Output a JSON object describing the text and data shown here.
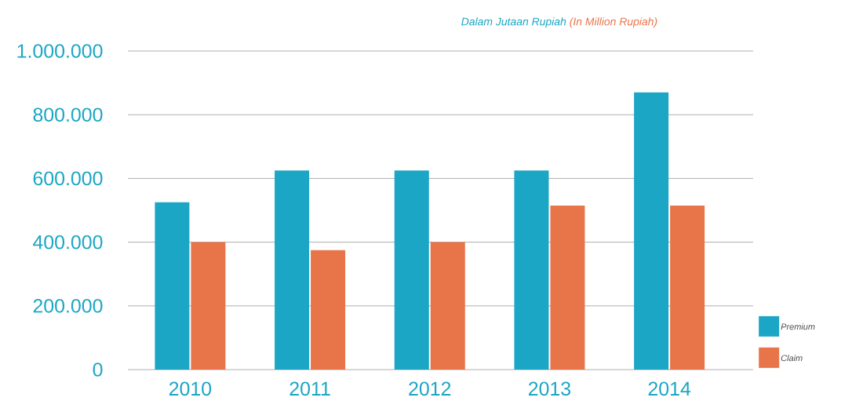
{
  "chart_data": {
    "type": "bar",
    "title": "Dalam Jutaan Rupiah",
    "subtitle": "(In Million Rupiah)",
    "categories": [
      "2010",
      "2011",
      "2012",
      "2013",
      "2014"
    ],
    "series": [
      {
        "name": "Premium",
        "color": "#1aa6c4",
        "values": [
          525000,
          625000,
          625000,
          625000,
          870000
        ]
      },
      {
        "name": "Claim",
        "color": "#e8744a",
        "values": [
          400000,
          375000,
          400000,
          515000,
          515000
        ]
      }
    ],
    "ylim": [
      0,
      1000000
    ],
    "yticks": [
      {
        "value": 0,
        "label": "0"
      },
      {
        "value": 200000,
        "label": "200.000"
      },
      {
        "value": 400000,
        "label": "400.000"
      },
      {
        "value": 600000,
        "label": "600.000"
      },
      {
        "value": 800000,
        "label": "800.000"
      },
      {
        "value": 1000000,
        "label": "1.000.000"
      }
    ],
    "grid": "y",
    "legend": "bottom right"
  }
}
